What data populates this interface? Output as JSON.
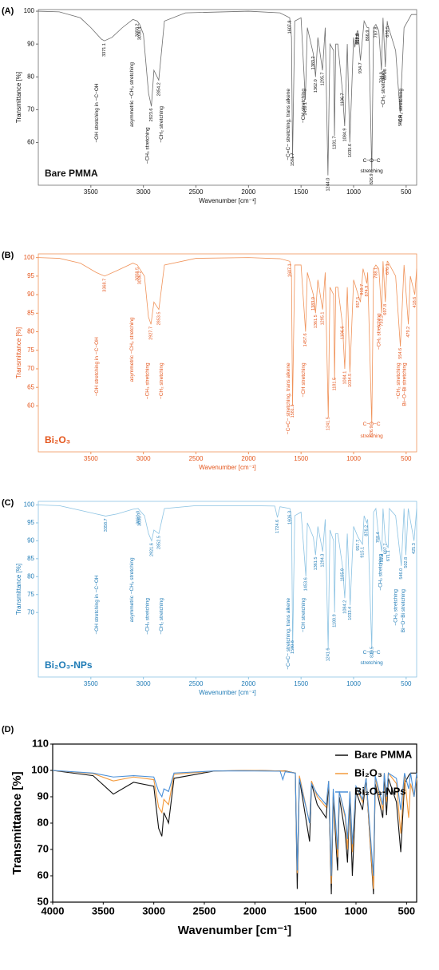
{
  "chart_data": [
    {
      "type": "line",
      "panel_label": "(A)",
      "title": "Bare PMMA",
      "xlabel": "Wavenumber [cm⁻¹]",
      "ylabel": "Transmittance [%]",
      "color": "#6e6e6e",
      "label_color": "#111111",
      "xlim": [
        4000,
        400
      ],
      "ylim": [
        47,
        100.5
      ],
      "xticks": [
        3500,
        3000,
        2500,
        2000,
        1500,
        1000,
        500
      ],
      "yticks": [
        60,
        70,
        80,
        90,
        100
      ],
      "x": [
        4000,
        3800,
        3600,
        3500,
        3400,
        3371,
        3300,
        3200,
        3100,
        3058,
        3036,
        3000,
        2951,
        2924,
        2900,
        2854,
        2800,
        2600,
        2000,
        1700,
        1608,
        1591,
        1581,
        1560,
        1500,
        1459,
        1440,
        1383,
        1362,
        1340,
        1296,
        1270,
        1244,
        1225,
        1190,
        1182,
        1170,
        1150,
        1107,
        1085,
        1060,
        1036,
        1000,
        988,
        966,
        958,
        935,
        900,
        870,
        856,
        827,
        810,
        788,
        760,
        735,
        720,
        698,
        680,
        676,
        600,
        557,
        520,
        450,
        400
      ],
      "values": [
        100,
        99.8,
        98,
        95,
        91.5,
        91,
        92,
        95,
        97.5,
        97,
        96,
        93,
        75,
        71,
        82,
        79,
        97,
        99.5,
        100,
        99.5,
        98,
        92,
        55,
        97,
        98,
        73,
        95,
        87,
        80,
        92,
        82,
        95,
        50,
        90,
        88,
        62,
        90,
        90,
        76,
        65,
        90,
        60,
        92,
        89,
        94,
        94,
        85,
        97,
        95,
        95,
        51,
        95,
        96,
        94,
        82,
        98,
        83,
        97,
        96,
        88,
        69,
        95,
        99,
        99
      ],
      "peak_labels": [
        "3371.1",
        "3058.2",
        "3036.4",
        "2923.6",
        "2854.2",
        "1607.8",
        "1581.7",
        "1459.1",
        "1383.2",
        "1362.0",
        "1295.7",
        "1244.0",
        "1181.7",
        "1106.7",
        "1084.9",
        "1035.6",
        "966.0",
        "957.8",
        "934.7",
        "866.9",
        "826.9",
        "787.8",
        "734.8",
        "697.8",
        "676.5",
        "556.9"
      ],
      "annotations": [
        "−OH stretching in −C−OH",
        "asymmetric −CH₃ stretching",
        "−CH₃ stretching",
        "−CH₂ stretching",
        "−C=C− stretching, trans alkene",
        "−CH stretching",
        "C−O−C",
        "stretching",
        "−CH₂ stretching",
        "−CH₂ stretching"
      ]
    },
    {
      "type": "line",
      "panel_label": "(B)",
      "title": "Bi₂O₃",
      "xlabel": "Wavenumber [cm⁻¹]",
      "ylabel": "Transmittance [%]",
      "color": "#f0935a",
      "label_color": "#e4571e",
      "xlim": [
        4000,
        400
      ],
      "ylim": [
        47.6,
        101
      ],
      "xticks": [
        3500,
        3000,
        2500,
        2000,
        1500,
        1000,
        500
      ],
      "yticks": [
        60,
        65,
        70,
        75,
        80,
        85,
        90,
        95,
        100
      ],
      "x": [
        4000,
        3800,
        3600,
        3450,
        3369,
        3250,
        3100,
        3058,
        3036,
        2990,
        2952,
        2928,
        2900,
        2853,
        2800,
        2500,
        2000,
        1700,
        1607,
        1591,
        1581,
        1560,
        1500,
        1457,
        1440,
        1383,
        1362,
        1340,
        1295,
        1270,
        1241,
        1225,
        1190,
        1181,
        1170,
        1150,
        1106,
        1084,
        1060,
        1035,
        1000,
        957,
        935,
        910,
        874,
        866,
        827,
        810,
        788,
        760,
        733,
        720,
        698,
        680,
        676,
        600,
        555,
        540,
        520,
        479,
        460,
        418,
        400
      ],
      "values": [
        100,
        99.8,
        98.5,
        96,
        95,
        96.5,
        98.5,
        98,
        97,
        95,
        84,
        82,
        88,
        86,
        98,
        99.8,
        100,
        99.7,
        99,
        95,
        60,
        98,
        98,
        80,
        96,
        90,
        85,
        94,
        86,
        96,
        57,
        92,
        90,
        67,
        92,
        92,
        82,
        70,
        92,
        69,
        94,
        90,
        88,
        97,
        93,
        96,
        55,
        97,
        98,
        97,
        85,
        99,
        88,
        99,
        99,
        95,
        76,
        85,
        98,
        82,
        95,
        90,
        97
      ],
      "peak_labels": [
        "3368.7",
        "3058.5",
        "3036.2",
        "2927.7",
        "2853.5",
        "1607.1",
        "1581.3",
        "1457.6",
        "1383.0",
        "1361.5",
        "1295.1",
        "1241.5",
        "1181.5",
        "1106.6",
        "1084.1",
        "1034.5",
        "957.5",
        "919.7",
        "874.9",
        "826.9",
        "788.1",
        "733.2",
        "697.8",
        "676.1",
        "554.6",
        "479.2",
        "418.6"
      ],
      "annotations": [
        "−OH stretching in −C−OH",
        "asymmetric −CH₃ stretching",
        "−CH₃ stretching",
        "−CH₂ stretching",
        "−C=C− stretching, trans alkene",
        "−CH stretching",
        "C−O−C",
        "stretching",
        "−CH₂ stretching",
        "−CH₂ stretching",
        "Bi−O−Bi stretching"
      ]
    },
    {
      "type": "line",
      "panel_label": "(C)",
      "title": "Bi₂O₃-NPs",
      "xlabel": "Wavenumber [cm⁻¹]",
      "ylabel": "Transmittance [%]",
      "color": "#8cc3e3",
      "label_color": "#1f7bb6",
      "xlim": [
        4000,
        400
      ],
      "ylim": [
        52,
        101
      ],
      "xticks": [
        3500,
        3000,
        2500,
        2000,
        1500,
        1000,
        500
      ],
      "yticks": [
        70,
        75,
        80,
        85,
        90,
        95,
        100
      ],
      "x": [
        4000,
        3800,
        3600,
        3450,
        3359,
        3250,
        3100,
        3050,
        3036,
        2990,
        2951,
        2922,
        2900,
        2853,
        2800,
        2500,
        2000,
        1750,
        1725,
        1700,
        1606,
        1590,
        1580,
        1560,
        1500,
        1454,
        1440,
        1383,
        1362,
        1340,
        1294,
        1270,
        1242,
        1225,
        1190,
        1181,
        1170,
        1150,
        1106,
        1084,
        1060,
        1033,
        1000,
        958,
        915,
        900,
        876,
        866,
        827,
        810,
        788,
        768,
        731,
        720,
        698,
        671,
        660,
        600,
        546,
        520,
        503,
        480,
        425,
        400
      ],
      "values": [
        100,
        99.8,
        98.5,
        97.5,
        96.9,
        97.5,
        98.8,
        99,
        98.5,
        97,
        92,
        90,
        93,
        92,
        99,
        99.8,
        99.8,
        99.7,
        96.5,
        99.5,
        99,
        96,
        60,
        97,
        98,
        80,
        95,
        91,
        86,
        94,
        87,
        96,
        60,
        93,
        90,
        70,
        92,
        92,
        83,
        74,
        92,
        72,
        94,
        91,
        89,
        97,
        95,
        96,
        60,
        98,
        99,
        93,
        87,
        99,
        90,
        88,
        99,
        97,
        83,
        99,
        86,
        99,
        90,
        99
      ],
      "peak_labels": [
        "3358.7",
        "3050.0",
        "3035.7",
        "2921.6",
        "2852.5",
        "1724.6",
        "1606.3",
        "1580.8",
        "1453.6",
        "1361.5",
        "1294.3",
        "1241.6",
        "1180.9",
        "1105.9",
        "1084.2",
        "1033.4",
        "957.7",
        "915.1",
        "876.2",
        "826.5",
        "768.4",
        "731.4",
        "697.7",
        "671.1",
        "546.0",
        "502.8",
        "425.3"
      ],
      "annotations": [
        "−OH stretching in −C−OH",
        "asymmetric −CH₃ stretching",
        "−CH₃ stretching",
        "−CH₂ stretching",
        "−C=C− stretching, trans alkene",
        "−CH stretching",
        "C−O−C",
        "stretching",
        "−CH₂ stretching",
        "−CH₂ stretching",
        "Bi−O−Bi stretching"
      ]
    },
    {
      "type": "line",
      "panel_label": "(D)",
      "xlabel": "Wavenumber [cm⁻¹]",
      "ylabel": "Transmittance [%]",
      "label_color": "#000000",
      "xlim": [
        4000,
        400
      ],
      "ylim": [
        50,
        110
      ],
      "xticks": [
        4000,
        3500,
        3000,
        2500,
        2000,
        1500,
        1000,
        500
      ],
      "yticks": [
        50,
        60,
        70,
        80,
        90,
        100,
        110
      ],
      "legend": "upper right",
      "x": [
        4000,
        3600,
        3400,
        3200,
        3000,
        2952,
        2920,
        2900,
        2854,
        2800,
        2400,
        2000,
        1750,
        1724,
        1700,
        1600,
        1581,
        1560,
        1459,
        1440,
        1383,
        1295,
        1270,
        1244,
        1225,
        1182,
        1165,
        1106,
        1084,
        1060,
        1036,
        1000,
        935,
        900,
        827,
        810,
        735,
        720,
        698,
        680,
        600,
        557,
        520,
        479,
        460,
        425,
        400
      ],
      "series": [
        {
          "name": "Bare PMMA",
          "color": "#111111",
          "values": [
            100,
            98,
            91,
            95.5,
            94,
            78,
            75,
            84,
            80,
            97,
            99.8,
            100,
            99.8,
            99.8,
            99.8,
            99,
            55,
            97,
            73,
            95,
            87,
            82,
            95,
            53,
            90,
            62,
            90,
            76,
            65,
            90,
            60,
            92,
            85,
            97,
            53,
            95,
            82,
            98,
            83,
            97,
            88,
            69,
            95,
            98,
            99,
            99,
            99
          ]
        },
        {
          "name": "Bi₂O₃",
          "color": "#f39a3c",
          "values": [
            100,
            98.8,
            96,
            97.5,
            96.5,
            86,
            84,
            89,
            87,
            98.5,
            99.8,
            100,
            99.8,
            99.8,
            99.7,
            99,
            61,
            98,
            80,
            96,
            90,
            86,
            96,
            57,
            92,
            67,
            92,
            82,
            70,
            92,
            69,
            94,
            88,
            97,
            55,
            97,
            85,
            99,
            88,
            99,
            95,
            76,
            98,
            82,
            95,
            90,
            97
          ]
        },
        {
          "name": "Bi₂O₃-NPs",
          "color": "#4a90d9",
          "values": [
            100,
            99,
            97.5,
            98,
            97.5,
            92,
            90,
            93,
            92,
            99,
            99.8,
            99.8,
            99.7,
            96.5,
            99.5,
            99,
            62,
            97,
            80,
            95,
            91,
            87,
            96,
            60,
            93,
            70,
            92,
            83,
            74,
            92,
            72,
            94,
            89,
            97,
            60,
            98,
            87,
            99,
            90,
            99,
            97,
            85,
            99,
            93,
            99,
            90,
            99
          ]
        }
      ]
    }
  ]
}
